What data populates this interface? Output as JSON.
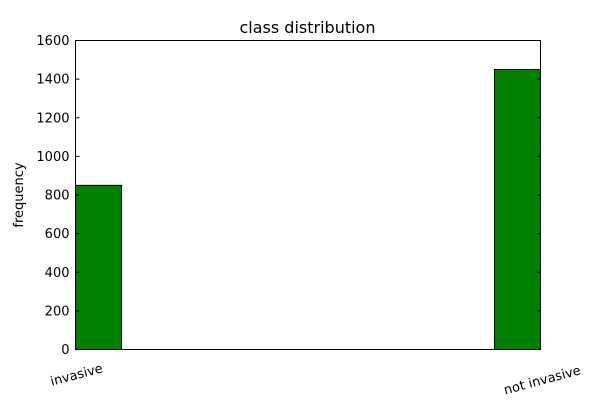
{
  "chart_data": {
    "type": "bar",
    "title": "class distribution",
    "xlabel": "",
    "ylabel": "frequency",
    "categories": [
      "invasive",
      "not invasive"
    ],
    "values": [
      850,
      1450
    ],
    "ylim": [
      0,
      1600
    ],
    "yticks": [
      "0",
      "200",
      "400",
      "600",
      "800",
      "1000",
      "1200",
      "1400",
      "1600"
    ],
    "grid": false,
    "bar_color": "#008000",
    "edge_color": "#000000"
  }
}
